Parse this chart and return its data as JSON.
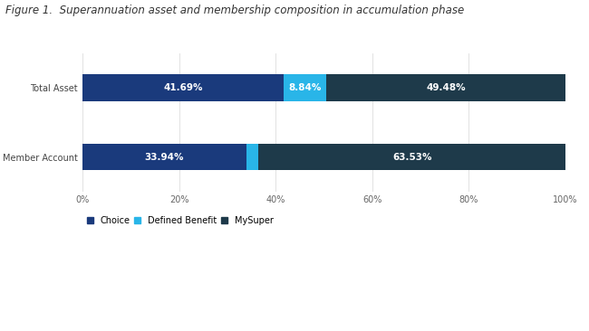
{
  "title": "Figure 1.  Superannuation asset and membership composition in accumulation phase",
  "categories": [
    "Total Asset",
    "Member Account"
  ],
  "segments": {
    "Choice": [
      41.69,
      33.94
    ],
    "Defined Benefit": [
      8.84,
      2.53
    ],
    "MySuper": [
      49.48,
      63.53
    ]
  },
  "colors": {
    "Choice": "#1a3a7c",
    "Defined Benefit": "#29b5e8",
    "MySuper": "#1e3a4a"
  },
  "xlim": [
    0,
    100
  ],
  "xticks": [
    0,
    20,
    40,
    60,
    80,
    100
  ],
  "xticklabels": [
    "0%",
    "20%",
    "40%",
    "60%",
    "80%",
    "100%"
  ],
  "background_color": "#ffffff",
  "bar_height": 0.38,
  "text_color_white": "#ffffff",
  "title_fontsize": 8.5,
  "label_fontsize": 7.5,
  "tick_fontsize": 7,
  "legend_fontsize": 7
}
